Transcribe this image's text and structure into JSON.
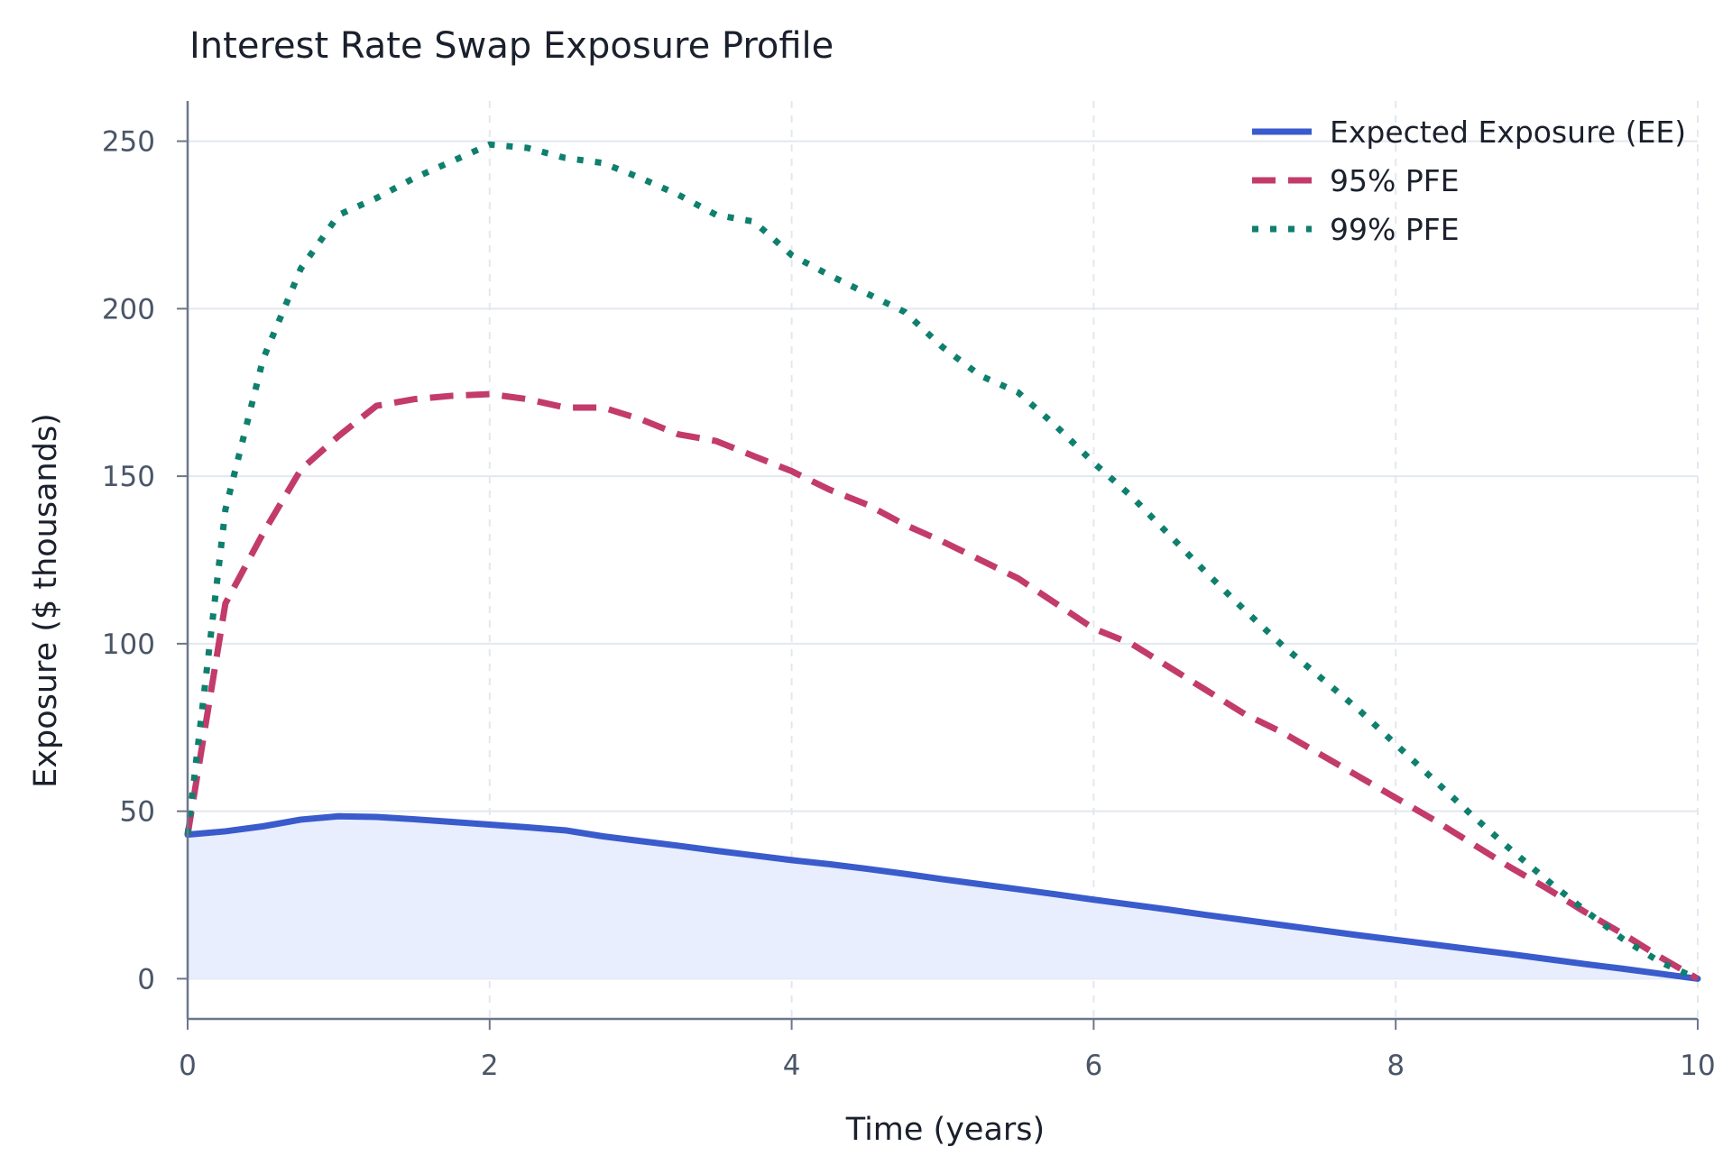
{
  "chart_data": {
    "type": "line",
    "title": "Interest Rate Swap Exposure Profile",
    "xlabel": "Time (years)",
    "ylabel": "Exposure ($ thousands)",
    "xlim": [
      0,
      10
    ],
    "ylim": [
      -12,
      262
    ],
    "xticks": [
      0,
      2,
      4,
      6,
      8,
      10
    ],
    "yticks": [
      0,
      50,
      100,
      150,
      200,
      250
    ],
    "grid": true,
    "legend_position": "top-right",
    "x": [
      0,
      0.25,
      0.5,
      0.75,
      1.0,
      1.25,
      1.5,
      1.75,
      2.0,
      2.25,
      2.5,
      2.75,
      3.0,
      3.25,
      3.5,
      3.75,
      4.0,
      4.25,
      4.5,
      4.75,
      5.0,
      5.25,
      5.5,
      5.75,
      6.0,
      6.25,
      6.5,
      6.75,
      7.0,
      7.25,
      7.5,
      7.75,
      8.0,
      8.25,
      8.5,
      8.75,
      9.0,
      9.25,
      9.5,
      9.75,
      10.0
    ],
    "series": [
      {
        "name": "Expected Exposure (EE)",
        "color": "#3a5bcc",
        "style": "solid",
        "fill": "#e8eefd",
        "values": [
          43,
          44,
          45.5,
          47.5,
          48.5,
          48.3,
          47.6,
          46.8,
          46,
          45.2,
          44.3,
          42.5,
          41.1,
          39.7,
          38.2,
          36.8,
          35.4,
          34.2,
          32.8,
          31.3,
          29.7,
          28.2,
          26.7,
          25.2,
          23.6,
          22.1,
          20.6,
          19,
          17.5,
          16,
          14.5,
          13,
          11.6,
          10.2,
          8.8,
          7.4,
          5.9,
          4.4,
          3,
          1.5,
          0
        ]
      },
      {
        "name": "95% PFE",
        "color": "#c23b6b",
        "style": "dashed",
        "values": [
          43,
          112,
          133,
          152,
          162,
          171,
          173,
          174,
          174.5,
          173,
          170.5,
          170.5,
          167,
          162.5,
          160.5,
          156,
          151.5,
          146,
          141.5,
          135.5,
          130.5,
          125,
          119.5,
          112,
          104.5,
          100,
          93,
          86,
          79,
          73.5,
          67,
          60.5,
          54,
          47.5,
          40.5,
          33.5,
          27,
          20,
          13.5,
          6.5,
          0
        ]
      },
      {
        "name": "99% PFE",
        "color": "#0f7f6e",
        "style": "dotted",
        "values": [
          43,
          140,
          185,
          212,
          228,
          233,
          239,
          244,
          249,
          248,
          245,
          243.5,
          239,
          234,
          228,
          226,
          216,
          210,
          204.5,
          199,
          188.5,
          180,
          175,
          165,
          154,
          144,
          132.5,
          121,
          110,
          99.5,
          90,
          80.5,
          70,
          59.5,
          49,
          39,
          29.5,
          20.5,
          12,
          5,
          0
        ]
      }
    ]
  }
}
